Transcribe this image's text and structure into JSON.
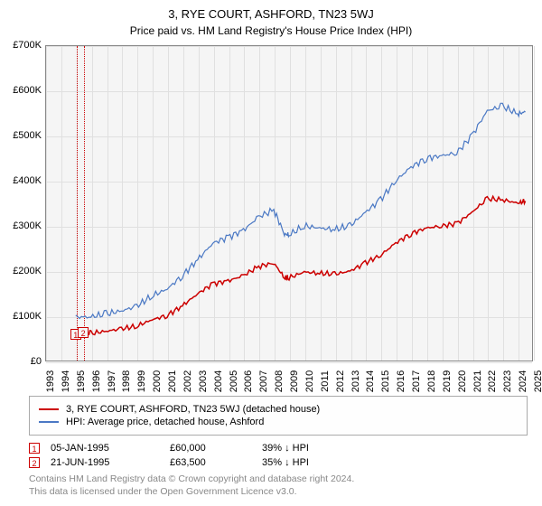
{
  "title": "3, RYE COURT, ASHFORD, TN23 5WJ",
  "subtitle": "Price paid vs. HM Land Registry's House Price Index (HPI)",
  "chart": {
    "type": "line",
    "background_color": "#f5f5f5",
    "border_color": "#888888",
    "grid_color": "#e0e0e0",
    "xlim": [
      1993,
      2025
    ],
    "ylim": [
      0,
      700000
    ],
    "ytick_step": 100000,
    "yticks": [
      "£0",
      "£100K",
      "£200K",
      "£300K",
      "£400K",
      "£500K",
      "£600K",
      "£700K"
    ],
    "xticks": [
      1993,
      1994,
      1995,
      1996,
      1997,
      1998,
      1999,
      2000,
      2001,
      2002,
      2003,
      2004,
      2005,
      2006,
      2007,
      2008,
      2009,
      2010,
      2011,
      2012,
      2013,
      2014,
      2015,
      2016,
      2017,
      2018,
      2019,
      2020,
      2021,
      2022,
      2023,
      2024,
      2025
    ],
    "label_fontsize": 11,
    "title_fontsize": 13,
    "series": [
      {
        "name": "property",
        "label": "3, RYE COURT, ASHFORD, TN23 5WJ (detached house)",
        "color": "#cc0000",
        "line_width": 1.5,
        "points": [
          [
            1995.0,
            60000
          ],
          [
            1995.5,
            63500
          ],
          [
            1996,
            62000
          ],
          [
            1997,
            67000
          ],
          [
            1998,
            72000
          ],
          [
            1999,
            78000
          ],
          [
            2000,
            92000
          ],
          [
            2001,
            102000
          ],
          [
            2002,
            123000
          ],
          [
            2003,
            150000
          ],
          [
            2004,
            172000
          ],
          [
            2005,
            178000
          ],
          [
            2006,
            190000
          ],
          [
            2007,
            210000
          ],
          [
            2008,
            218000
          ],
          [
            2008.7,
            185000
          ],
          [
            2009,
            185000
          ],
          [
            2010,
            198000
          ],
          [
            2011,
            195000
          ],
          [
            2012,
            193000
          ],
          [
            2013,
            200000
          ],
          [
            2014,
            218000
          ],
          [
            2015,
            235000
          ],
          [
            2016,
            262000
          ],
          [
            2017,
            283000
          ],
          [
            2018,
            295000
          ],
          [
            2019,
            300000
          ],
          [
            2020,
            305000
          ],
          [
            2021,
            330000
          ],
          [
            2022,
            360000
          ],
          [
            2023,
            358000
          ],
          [
            2024,
            350000
          ],
          [
            2024.5,
            355000
          ]
        ]
      },
      {
        "name": "hpi",
        "label": "HPI: Average price, detached house, Ashford",
        "color": "#4a78c4",
        "line_width": 1.2,
        "points": [
          [
            1995.0,
            98000
          ],
          [
            1996,
            99000
          ],
          [
            1997,
            105000
          ],
          [
            1998,
            112000
          ],
          [
            1999,
            122000
          ],
          [
            2000,
            145000
          ],
          [
            2001,
            160000
          ],
          [
            2002,
            190000
          ],
          [
            2003,
            225000
          ],
          [
            2004,
            262000
          ],
          [
            2005,
            275000
          ],
          [
            2006,
            290000
          ],
          [
            2007,
            320000
          ],
          [
            2008,
            335000
          ],
          [
            2008.7,
            282000
          ],
          [
            2009,
            280000
          ],
          [
            2010,
            300000
          ],
          [
            2011,
            295000
          ],
          [
            2012,
            292000
          ],
          [
            2013,
            300000
          ],
          [
            2014,
            330000
          ],
          [
            2015,
            358000
          ],
          [
            2016,
            400000
          ],
          [
            2017,
            430000
          ],
          [
            2018,
            450000
          ],
          [
            2019,
            455000
          ],
          [
            2020,
            462000
          ],
          [
            2021,
            500000
          ],
          [
            2022,
            555000
          ],
          [
            2023,
            565000
          ],
          [
            2024,
            548000
          ],
          [
            2024.5,
            552000
          ]
        ]
      }
    ],
    "sale_markers": [
      {
        "n": "1",
        "x": 1995.0,
        "y": 60000,
        "color": "#cc0000"
      },
      {
        "n": "2",
        "x": 1995.5,
        "y": 63500,
        "color": "#cc0000"
      }
    ],
    "vlines": [
      {
        "x": 1995.0,
        "color": "#cc0000"
      },
      {
        "x": 1995.5,
        "color": "#cc0000"
      }
    ]
  },
  "legend": {
    "items": [
      {
        "color": "#cc0000",
        "label": "3, RYE COURT, ASHFORD, TN23 5WJ (detached house)"
      },
      {
        "color": "#4a78c4",
        "label": "HPI: Average price, detached house, Ashford"
      }
    ]
  },
  "events": [
    {
      "n": "1",
      "marker_color": "#cc0000",
      "date": "05-JAN-1995",
      "price": "£60,000",
      "delta": "39% ↓ HPI"
    },
    {
      "n": "2",
      "marker_color": "#cc0000",
      "date": "21-JUN-1995",
      "price": "£63,500",
      "delta": "35% ↓ HPI"
    }
  ],
  "credit_line1": "Contains HM Land Registry data © Crown copyright and database right 2024.",
  "credit_line2": "This data is licensed under the Open Government Licence v3.0."
}
